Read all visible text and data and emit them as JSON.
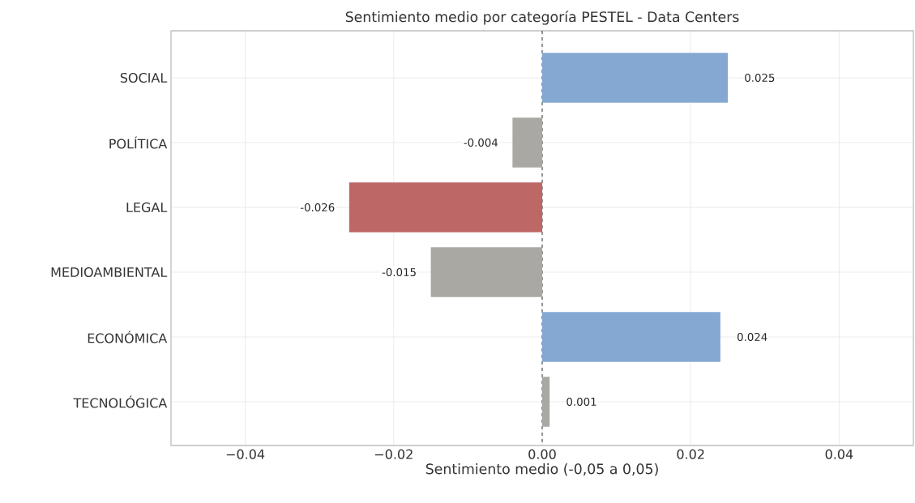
{
  "chart_data": {
    "type": "bar",
    "orientation": "horizontal",
    "title": "Sentimiento medio por categoría PESTEL - Data Centers",
    "xlabel": "Sentimiento medio (-0,05 a 0,05)",
    "categories": [
      "SOCIAL",
      "POLÍTICA",
      "LEGAL",
      "MEDIOAMBIENTAL",
      "ECONÓMICA",
      "TECNOLÓGICA"
    ],
    "values": [
      0.025,
      -0.004,
      -0.026,
      -0.015,
      0.024,
      0.001
    ],
    "colors": [
      "#84a8d2",
      "#aaa8a2",
      "#bd6767",
      "#aaa8a2",
      "#84a8d2",
      "#aaa8a2"
    ],
    "data_labels": true,
    "xlim": [
      -0.05,
      0.05
    ],
    "xticks": [
      {
        "value": -0.04,
        "label": "−0.04"
      },
      {
        "value": -0.02,
        "label": "−0.02"
      },
      {
        "value": 0.0,
        "label": "0.00"
      },
      {
        "value": 0.02,
        "label": "0.02"
      },
      {
        "value": 0.04,
        "label": "0.04"
      }
    ],
    "ref_lines": [
      {
        "axis": "x",
        "value": 0,
        "color": "#555555",
        "line_style": "dashed"
      }
    ],
    "grid": true
  }
}
